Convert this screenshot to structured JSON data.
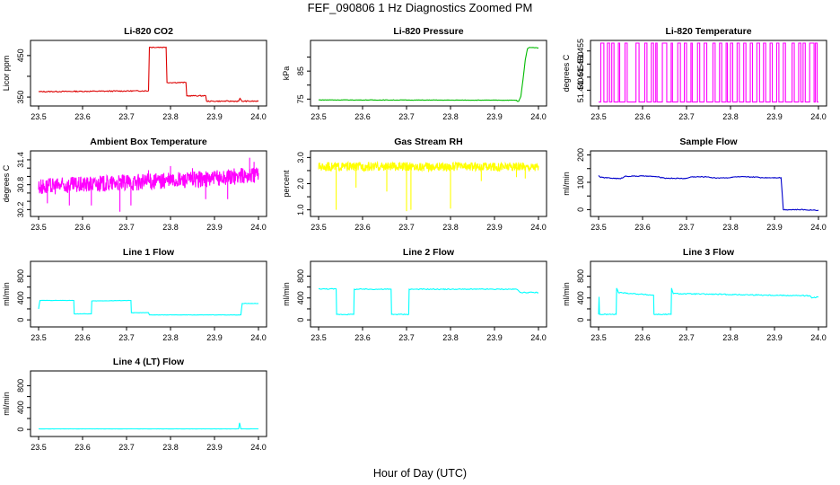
{
  "figure": {
    "title": "FEF_090806  1 Hz Diagnostics Zoomed PM",
    "xlabel": "Hour of Day (UTC)"
  },
  "colors": {
    "red": "#dd0000",
    "green": "#00bb00",
    "magenta": "#ff00ff",
    "yellow": "#ffff00",
    "blue": "#0000cc",
    "cyan": "#00ffff"
  },
  "chart_data": [
    {
      "id": "co2",
      "type": "line",
      "title": "Li-820 CO2",
      "ylabel": "Licor ppm",
      "xlim": [
        23.5,
        24.0
      ],
      "xticks": [
        "23.5",
        "23.6",
        "23.7",
        "23.8",
        "23.9",
        "24.0"
      ],
      "ylim": [
        335,
        480
      ],
      "yticks": [
        350,
        400,
        450
      ],
      "ytick_labels": [
        "350",
        "",
        "450"
      ],
      "color": "red",
      "noise": 1.2,
      "series": {
        "x": [
          23.5,
          23.75,
          23.752,
          23.79,
          23.792,
          23.835,
          23.837,
          23.88,
          23.882,
          23.955,
          23.958,
          23.962,
          24.0
        ],
        "y": [
          363,
          365,
          470,
          470,
          385,
          385,
          353,
          353,
          340,
          340,
          347,
          340,
          340
        ]
      }
    },
    {
      "id": "pressure",
      "type": "line",
      "title": "Li-820 Pressure",
      "ylabel": "kPa",
      "xlim": [
        23.5,
        24.0
      ],
      "xticks": [
        "23.5",
        "23.6",
        "23.7",
        "23.8",
        "23.9",
        "24.0"
      ],
      "ylim": [
        73.5,
        95
      ],
      "yticks": [
        75,
        80,
        85,
        90
      ],
      "ytick_labels": [
        "75",
        "",
        "85",
        ""
      ],
      "color": "green",
      "noise": 0.08,
      "series": {
        "x": [
          23.5,
          23.95,
          23.952,
          23.955,
          23.96,
          23.965,
          23.97,
          23.975,
          23.98,
          24.0
        ],
        "y": [
          74.7,
          74.6,
          74.2,
          74.2,
          76,
          82,
          89,
          93,
          93.5,
          93.3
        ]
      }
    },
    {
      "id": "temperature",
      "type": "line",
      "title": "Li-820 Temperature",
      "ylabel": "degrees C",
      "xlim": [
        23.5,
        24.0
      ],
      "xticks": [
        "23.5",
        "23.6",
        "23.7",
        "23.8",
        "23.9",
        "24.0"
      ],
      "ylim": [
        51.435,
        51.458
      ],
      "yticks": [
        51.44,
        51.445,
        51.45,
        51.455
      ],
      "ytick_labels": [
        "51.440",
        "51.445",
        "51.450",
        "51.455"
      ],
      "color": "magenta",
      "style": "square",
      "low": 51.4355,
      "high": 51.458,
      "pulses": [
        [
          23.505,
          23.512
        ],
        [
          23.52,
          23.525
        ],
        [
          23.53,
          23.535
        ],
        [
          23.545,
          23.548
        ],
        [
          23.56,
          23.565
        ],
        [
          23.585,
          23.592
        ],
        [
          23.605,
          23.61
        ],
        [
          23.62,
          23.625
        ],
        [
          23.63,
          23.633
        ],
        [
          23.645,
          23.655
        ],
        [
          23.665,
          23.668
        ],
        [
          23.68,
          23.686
        ],
        [
          23.695,
          23.7
        ],
        [
          23.71,
          23.713
        ],
        [
          23.725,
          23.73
        ],
        [
          23.74,
          23.746
        ],
        [
          23.76,
          23.765
        ],
        [
          23.775,
          23.78
        ],
        [
          23.79,
          23.793
        ],
        [
          23.8,
          23.805
        ],
        [
          23.815,
          23.82
        ],
        [
          23.83,
          23.835
        ],
        [
          23.845,
          23.85
        ],
        [
          23.86,
          23.866
        ],
        [
          23.875,
          23.88
        ],
        [
          23.89,
          23.895
        ],
        [
          23.905,
          23.91
        ],
        [
          23.92,
          23.925
        ],
        [
          23.94,
          23.945
        ],
        [
          23.955,
          23.96
        ],
        [
          23.965,
          23.97
        ],
        [
          23.98,
          23.99
        ],
        [
          23.993,
          23.997
        ]
      ]
    },
    {
      "id": "ambient",
      "type": "line",
      "title": "Ambient Box Temperature",
      "ylabel": "degrees C",
      "xlim": [
        23.5,
        24.0
      ],
      "xticks": [
        "23.5",
        "23.6",
        "23.7",
        "23.8",
        "23.9",
        "24.0"
      ],
      "ylim": [
        30.1,
        31.55
      ],
      "yticks": [
        30.2,
        30.4,
        30.6,
        30.8,
        31.0,
        31.2,
        31.4
      ],
      "ytick_labels": [
        "30.2",
        "",
        "",
        "30.8",
        "",
        "",
        "31.4"
      ],
      "color": "magenta",
      "style": "band",
      "series": {
        "x": [
          23.5,
          23.6,
          23.7,
          23.8,
          23.9,
          24.0
        ],
        "y": [
          30.75,
          30.8,
          30.85,
          30.9,
          30.95,
          31.05
        ]
      },
      "band_halfwidth": 0.2,
      "spikes": [
        [
          23.52,
          30.35
        ],
        [
          23.57,
          30.3
        ],
        [
          23.62,
          30.3
        ],
        [
          23.685,
          30.15
        ],
        [
          23.71,
          30.3
        ],
        [
          23.75,
          31.15
        ],
        [
          23.8,
          31.25
        ],
        [
          23.85,
          31.2
        ],
        [
          23.88,
          30.45
        ],
        [
          23.93,
          30.45
        ],
        [
          23.98,
          31.45
        ],
        [
          23.99,
          31.35
        ]
      ]
    },
    {
      "id": "rh",
      "type": "line",
      "title": "Gas Stream RH",
      "ylabel": "percent",
      "xlim": [
        23.5,
        24.0
      ],
      "xticks": [
        "23.5",
        "23.6",
        "23.7",
        "23.8",
        "23.9",
        "24.0"
      ],
      "ylim": [
        0.85,
        3.15
      ],
      "yticks": [
        1.0,
        1.5,
        2.0,
        2.5,
        3.0
      ],
      "ytick_labels": [
        "1.0",
        "",
        "2.0",
        "",
        "3.0"
      ],
      "color": "yellow",
      "style": "band",
      "series": {
        "x": [
          23.5,
          24.0
        ],
        "y": [
          2.65,
          2.65
        ]
      },
      "band_halfwidth": 0.17,
      "spikes": [
        [
          23.54,
          1.0
        ],
        [
          23.585,
          1.85
        ],
        [
          23.655,
          1.7
        ],
        [
          23.7,
          0.95
        ],
        [
          23.71,
          1.0
        ],
        [
          23.8,
          1.05
        ],
        [
          23.87,
          2.1
        ],
        [
          23.95,
          2.25
        ],
        [
          23.97,
          2.2
        ]
      ]
    },
    {
      "id": "sampleflow",
      "type": "line",
      "title": "Sample Flow",
      "ylabel": "ml/min",
      "xlim": [
        23.5,
        24.0
      ],
      "xticks": [
        "23.5",
        "23.6",
        "23.7",
        "23.8",
        "23.9",
        "24.0"
      ],
      "ylim": [
        -15,
        205
      ],
      "yticks": [
        0,
        50,
        100,
        150,
        200
      ],
      "ytick_labels": [
        "0",
        "",
        "100",
        "",
        "200"
      ],
      "color": "blue",
      "noise": 1.5,
      "series": {
        "x": [
          23.5,
          23.505,
          23.55,
          23.56,
          23.6,
          23.63,
          23.65,
          23.66,
          23.7,
          23.71,
          23.75,
          23.76,
          23.8,
          23.81,
          23.86,
          23.87,
          23.915,
          23.92,
          23.96,
          24.0
        ],
        "y": [
          125,
          118,
          113,
          122,
          123,
          121,
          115,
          115,
          114,
          120,
          120,
          116,
          117,
          120,
          119,
          117,
          117,
          0,
          0,
          -2
        ]
      }
    },
    {
      "id": "line1",
      "type": "line",
      "title": "Line 1 Flow",
      "ylabel": "ml/min",
      "xlim": [
        23.5,
        24.0
      ],
      "xticks": [
        "23.5",
        "23.6",
        "23.7",
        "23.8",
        "23.9",
        "24.0"
      ],
      "ylim": [
        -80,
        1020
      ],
      "yticks": [
        0,
        200,
        400,
        600,
        800
      ],
      "ytick_labels": [
        "0",
        "",
        "400",
        "",
        "800"
      ],
      "color": "cyan",
      "noise": 3,
      "series": {
        "x": [
          23.5,
          23.503,
          23.58,
          23.581,
          23.62,
          23.621,
          23.71,
          23.711,
          23.75,
          23.752,
          23.96,
          23.963,
          24.0
        ],
        "y": [
          200,
          355,
          355,
          110,
          110,
          345,
          355,
          130,
          130,
          90,
          90,
          300,
          300
        ]
      }
    },
    {
      "id": "line2",
      "type": "line",
      "title": "Line 2 Flow",
      "ylabel": "ml/min",
      "xlim": [
        23.5,
        24.0
      ],
      "xticks": [
        "23.5",
        "23.6",
        "23.7",
        "23.8",
        "23.9",
        "24.0"
      ],
      "ylim": [
        -80,
        1020
      ],
      "yticks": [
        0,
        200,
        400,
        600,
        800
      ],
      "ytick_labels": [
        "0",
        "",
        "400",
        "",
        "800"
      ],
      "color": "cyan",
      "noise": 8,
      "series": {
        "x": [
          23.5,
          23.54,
          23.541,
          23.58,
          23.581,
          23.665,
          23.666,
          23.705,
          23.706,
          23.95,
          23.96,
          24.0
        ],
        "y": [
          565,
          565,
          100,
          100,
          560,
          560,
          100,
          100,
          560,
          560,
          500,
          500
        ]
      }
    },
    {
      "id": "line3",
      "type": "line",
      "title": "Line 3 Flow",
      "ylabel": "ml/min",
      "xlim": [
        23.5,
        24.0
      ],
      "xticks": [
        "23.5",
        "23.6",
        "23.7",
        "23.8",
        "23.9",
        "24.0"
      ],
      "ylim": [
        -80,
        1020
      ],
      "yticks": [
        0,
        200,
        400,
        600,
        800
      ],
      "ytick_labels": [
        "0",
        "",
        "400",
        "",
        "800"
      ],
      "color": "cyan",
      "noise": 9,
      "series": {
        "x": [
          23.5,
          23.501,
          23.502,
          23.54,
          23.541,
          23.545,
          23.625,
          23.626,
          23.665,
          23.666,
          23.67,
          23.98,
          23.985,
          24.0
        ],
        "y": [
          100,
          420,
          100,
          100,
          580,
          500,
          450,
          100,
          100,
          580,
          480,
          440,
          400,
          420
        ]
      }
    },
    {
      "id": "line4",
      "type": "line",
      "title": "Line 4 (LT) Flow",
      "ylabel": "ml/min",
      "xlim": [
        23.5,
        24.0
      ],
      "xticks": [
        "23.5",
        "23.6",
        "23.7",
        "23.8",
        "23.9",
        "24.0"
      ],
      "ylim": [
        -80,
        1020
      ],
      "yticks": [
        0,
        200,
        400,
        600,
        800
      ],
      "ytick_labels": [
        "0",
        "",
        "400",
        "",
        "800"
      ],
      "color": "cyan",
      "noise": 1.5,
      "series": {
        "x": [
          23.5,
          23.955,
          23.957,
          23.96,
          24.0
        ],
        "y": [
          10,
          10,
          120,
          10,
          10
        ]
      }
    }
  ]
}
